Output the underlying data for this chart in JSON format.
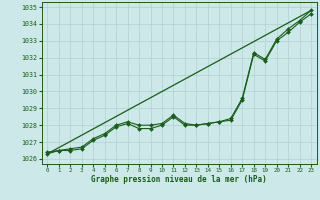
{
  "xlabel": "Graphe pression niveau de la mer (hPa)",
  "bg_color": "#cce8e8",
  "grid_color": "#b0d0d0",
  "line_color": "#1a5c1a",
  "xlim": [
    -0.5,
    23.5
  ],
  "ylim": [
    1025.7,
    1035.3
  ],
  "yticks": [
    1026,
    1027,
    1028,
    1029,
    1030,
    1031,
    1032,
    1033,
    1034,
    1035
  ],
  "xticks": [
    0,
    1,
    2,
    3,
    4,
    5,
    6,
    7,
    8,
    9,
    10,
    11,
    12,
    13,
    14,
    15,
    16,
    17,
    18,
    19,
    20,
    21,
    22,
    23
  ],
  "series1_x": [
    0,
    1,
    2,
    3,
    4,
    5,
    6,
    7,
    8,
    9,
    10,
    11,
    12,
    13,
    14,
    15,
    16,
    17,
    18,
    19,
    20,
    21,
    22,
    23
  ],
  "series1_y": [
    1026.3,
    1026.5,
    1026.5,
    1026.6,
    1027.1,
    1027.4,
    1027.9,
    1028.1,
    1027.8,
    1027.8,
    1028.0,
    1028.5,
    1028.0,
    1028.0,
    1028.1,
    1028.2,
    1028.3,
    1029.5,
    1032.2,
    1031.8,
    1033.0,
    1033.5,
    1034.1,
    1034.6
  ],
  "series2_x": [
    0,
    1,
    2,
    3,
    4,
    5,
    6,
    7,
    8,
    9,
    10,
    11,
    12,
    13,
    14,
    15,
    16,
    17,
    18,
    19,
    20,
    21,
    22,
    23
  ],
  "series2_y": [
    1026.4,
    1026.5,
    1026.6,
    1026.7,
    1027.2,
    1027.5,
    1028.0,
    1028.2,
    1028.0,
    1028.0,
    1028.1,
    1028.6,
    1028.1,
    1028.0,
    1028.1,
    1028.2,
    1028.4,
    1029.6,
    1032.3,
    1031.9,
    1033.1,
    1033.7,
    1034.2,
    1034.8
  ],
  "trend_x": [
    0,
    23
  ],
  "trend_y": [
    1026.3,
    1034.8
  ]
}
